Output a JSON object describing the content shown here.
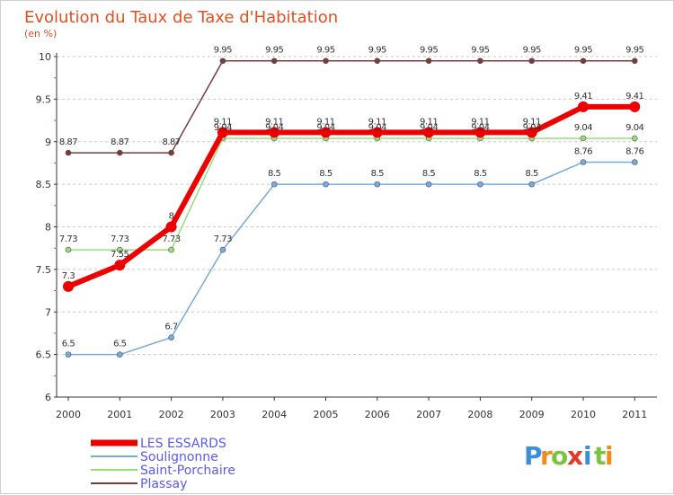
{
  "chart_data": {
    "type": "line",
    "title": "Evolution du Taux de Taxe d'Habitation",
    "subtitle": "(en %)",
    "xlabel": "",
    "ylabel": "",
    "categories": [
      "2000",
      "2001",
      "2002",
      "2003",
      "2004",
      "2005",
      "2006",
      "2007",
      "2008",
      "2009",
      "2010",
      "2011"
    ],
    "ylim": [
      6,
      10
    ],
    "yticks": [
      "6",
      "6.5",
      "7",
      "7.5",
      "8",
      "8.5",
      "9",
      "9.5",
      "10"
    ],
    "grid": "dashed-horizontal",
    "legend_position": "bottom-left",
    "series": [
      {
        "name": "Plassay",
        "color": "#7b3b3b",
        "values": [
          8.87,
          8.87,
          8.87,
          9.95,
          9.95,
          9.95,
          9.95,
          9.95,
          9.95,
          9.95,
          9.95,
          9.95
        ],
        "labels": [
          "8.87",
          "8.87",
          "8.87",
          "9.95",
          "9.95",
          "9.95",
          "9.95",
          "9.95",
          "9.95",
          "9.95",
          "9.95",
          "9.95"
        ]
      },
      {
        "name": "Saint-Porchaire",
        "color": "#99dd77",
        "values": [
          7.73,
          7.73,
          7.73,
          9.04,
          9.04,
          9.04,
          9.04,
          9.04,
          9.04,
          9.04,
          9.04,
          9.04
        ],
        "labels": [
          "7.73",
          "7.73",
          "7.73",
          "9.04",
          "9.04",
          "9.04",
          "9.04",
          "9.04",
          "9.04",
          "9.04",
          "9.04",
          "9.04"
        ]
      },
      {
        "name": "Soulignonne",
        "color": "#77aadd",
        "values": [
          6.5,
          6.5,
          6.7,
          7.73,
          8.5,
          8.5,
          8.5,
          8.5,
          8.5,
          8.5,
          8.76,
          8.76
        ],
        "labels": [
          "6.5",
          "6.5",
          "6.7",
          "7.73",
          "8.5",
          "8.5",
          "8.5",
          "8.5",
          "8.5",
          "8.5",
          "8.76",
          "8.76"
        ]
      },
      {
        "name": "LES ESSARDS",
        "color": "#ee0000",
        "values": [
          7.3,
          7.55,
          8,
          9.11,
          9.11,
          9.11,
          9.11,
          9.11,
          9.11,
          9.11,
          9.41,
          9.41
        ],
        "labels": [
          "7.3",
          "7.55",
          "8",
          "9.11",
          "9.11",
          "9.11",
          "9.11",
          "9.11",
          "9.11",
          "9.11",
          "9.41",
          "9.41"
        ]
      }
    ],
    "legend_order": [
      "LES ESSARDS",
      "Soulignonne",
      "Saint-Porchaire",
      "Plassay"
    ]
  },
  "logo": {
    "letters": [
      "P",
      "r",
      "o",
      "x",
      "i",
      "t",
      "i"
    ],
    "colors": [
      "#3b8fd6",
      "#f08c1e",
      "#7cc242",
      "#e2392b",
      "#3b8fd6",
      "#7cc242",
      "#f08c1e"
    ]
  }
}
